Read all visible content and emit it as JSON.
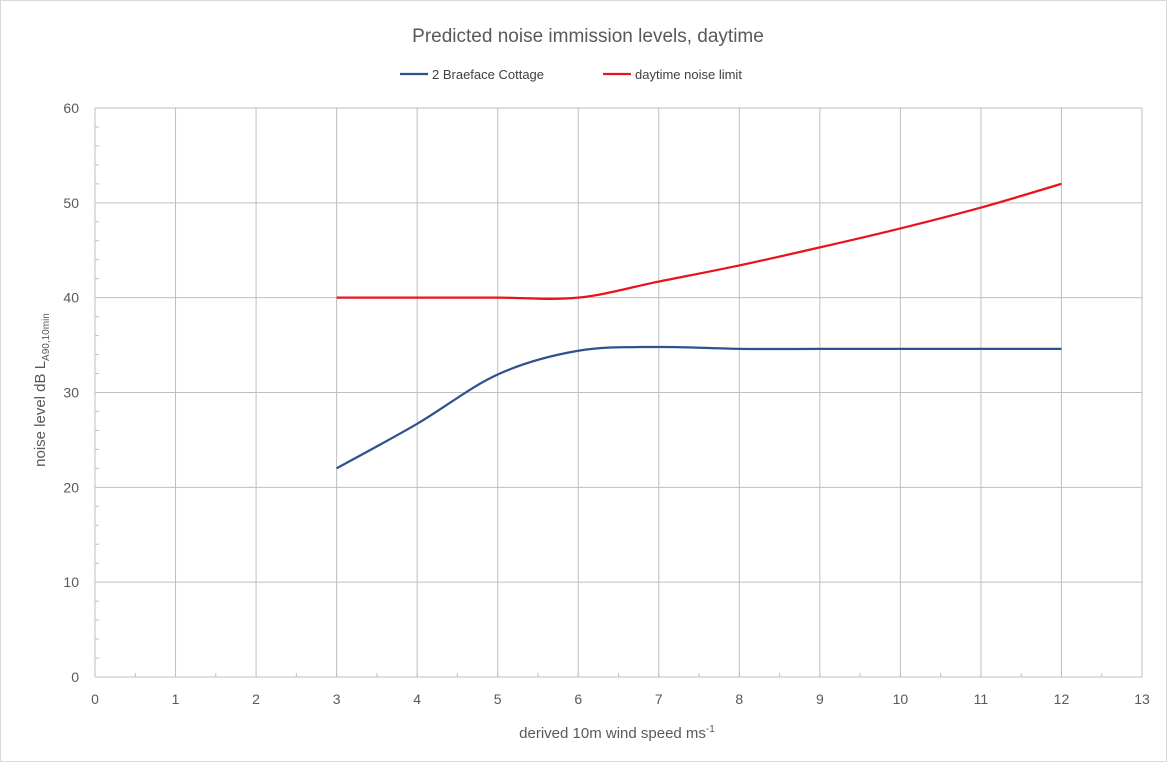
{
  "chart_data": {
    "type": "line",
    "title": "Predicted noise immission levels, daytime",
    "xlabel": "derived 10m wind speed ms",
    "xlabel_superscript": "-1",
    "ylabel": "noise level dB L",
    "ylabel_subscript": "A90,10min",
    "xlim": [
      0,
      13
    ],
    "ylim": [
      0,
      60
    ],
    "x_ticks": [
      0,
      1,
      2,
      3,
      4,
      5,
      6,
      7,
      8,
      9,
      10,
      11,
      12,
      13
    ],
    "y_ticks": [
      0,
      10,
      20,
      30,
      40,
      50,
      60
    ],
    "grid": true,
    "legend_position": "top",
    "series": [
      {
        "name": "2 Braeface Cottage",
        "color": "#2f528f",
        "x": [
          3,
          4,
          5,
          6,
          7,
          8,
          9,
          10,
          11,
          12
        ],
        "y": [
          22.0,
          26.7,
          31.9,
          34.4,
          34.8,
          34.6,
          34.6,
          34.6,
          34.6,
          34.6
        ]
      },
      {
        "name": "daytime noise limit",
        "color": "#e8141b",
        "x": [
          3,
          4,
          5,
          6,
          7,
          8,
          9,
          10,
          11,
          12
        ],
        "y": [
          40.0,
          40.0,
          40.0,
          40.0,
          41.7,
          43.4,
          45.3,
          47.3,
          49.5,
          52.0
        ]
      }
    ]
  }
}
